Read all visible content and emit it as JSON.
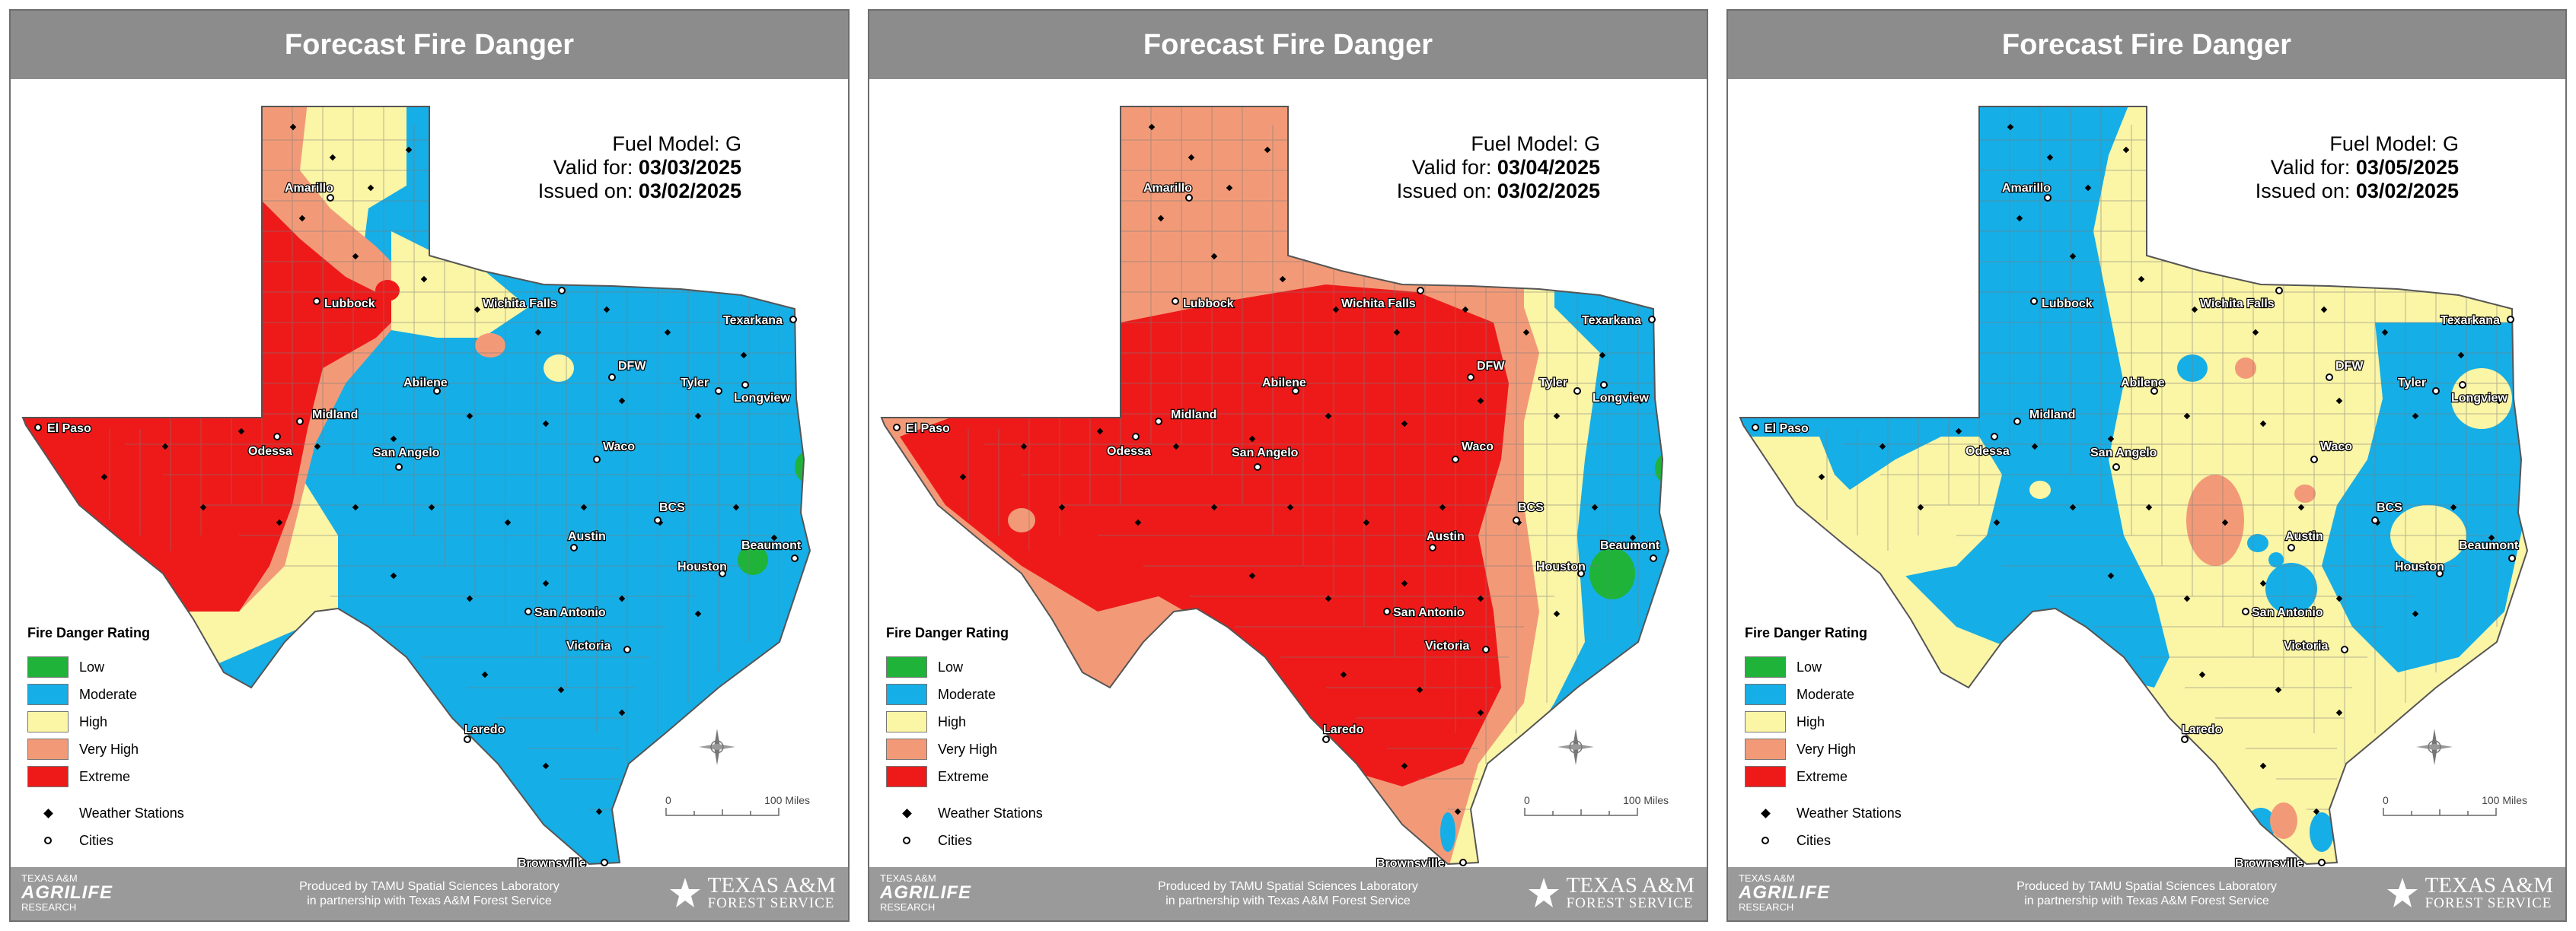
{
  "colors": {
    "low": "#1fb33a",
    "moderate": "#16aee6",
    "high": "#fbf5a6",
    "very_high": "#f29a78",
    "extreme": "#ee1a1a",
    "header_bg": "#8c8c8c",
    "footer_bg": "#9a9a9a"
  },
  "legend": {
    "title": "Fire Danger Rating",
    "ratings": [
      {
        "key": "low",
        "label": "Low"
      },
      {
        "key": "moderate",
        "label": "Moderate"
      },
      {
        "key": "high",
        "label": "High"
      },
      {
        "key": "very_high",
        "label": "Very High"
      },
      {
        "key": "extreme",
        "label": "Extreme"
      }
    ],
    "stations_label": "Weather Stations",
    "cities_label": "Cities"
  },
  "scale": {
    "zero": "0",
    "max": "100 Miles"
  },
  "compass": {
    "n": "N",
    "s": "S",
    "e": "E",
    "w": "W"
  },
  "footer": {
    "left_top": "TEXAS A&M",
    "left_mid": "AGRILIFE",
    "left_bottom": "RESEARCH",
    "center_line1": "Produced by TAMU Spatial Sciences Laboratory",
    "center_line2": "in partnership with Texas A&M Forest Service",
    "right_line1": "TEXAS A&M",
    "right_line2": "FOREST SERVICE"
  },
  "cities": [
    {
      "name": "Amarillo"
    },
    {
      "name": "Lubbock"
    },
    {
      "name": "Wichita Falls"
    },
    {
      "name": "Texarkana"
    },
    {
      "name": "DFW"
    },
    {
      "name": "Abilene"
    },
    {
      "name": "Tyler"
    },
    {
      "name": "Longview"
    },
    {
      "name": "El Paso"
    },
    {
      "name": "Midland"
    },
    {
      "name": "Odessa"
    },
    {
      "name": "San Angelo"
    },
    {
      "name": "Waco"
    },
    {
      "name": "BCS"
    },
    {
      "name": "Austin"
    },
    {
      "name": "Beaumont"
    },
    {
      "name": "Houston"
    },
    {
      "name": "San Antonio"
    },
    {
      "name": "Victoria"
    },
    {
      "name": "Laredo"
    },
    {
      "name": "Brownsville"
    }
  ],
  "panels": [
    {
      "title": "Forecast Fire Danger",
      "fuel_label": "Fuel Model:",
      "fuel_model": "G",
      "valid_label": "Valid for:",
      "valid_date": "03/03/2025",
      "issued_label": "Issued on:",
      "issued_date": "03/02/2025"
    },
    {
      "title": "Forecast Fire Danger",
      "fuel_label": "Fuel Model:",
      "fuel_model": "G",
      "valid_label": "Valid for:",
      "valid_date": "03/04/2025",
      "issued_label": "Issued on:",
      "issued_date": "03/02/2025"
    },
    {
      "title": "Forecast Fire Danger",
      "fuel_label": "Fuel Model:",
      "fuel_model": "G",
      "valid_label": "Valid for:",
      "valid_date": "03/05/2025",
      "issued_label": "Issued on:",
      "issued_date": "03/02/2025"
    }
  ]
}
